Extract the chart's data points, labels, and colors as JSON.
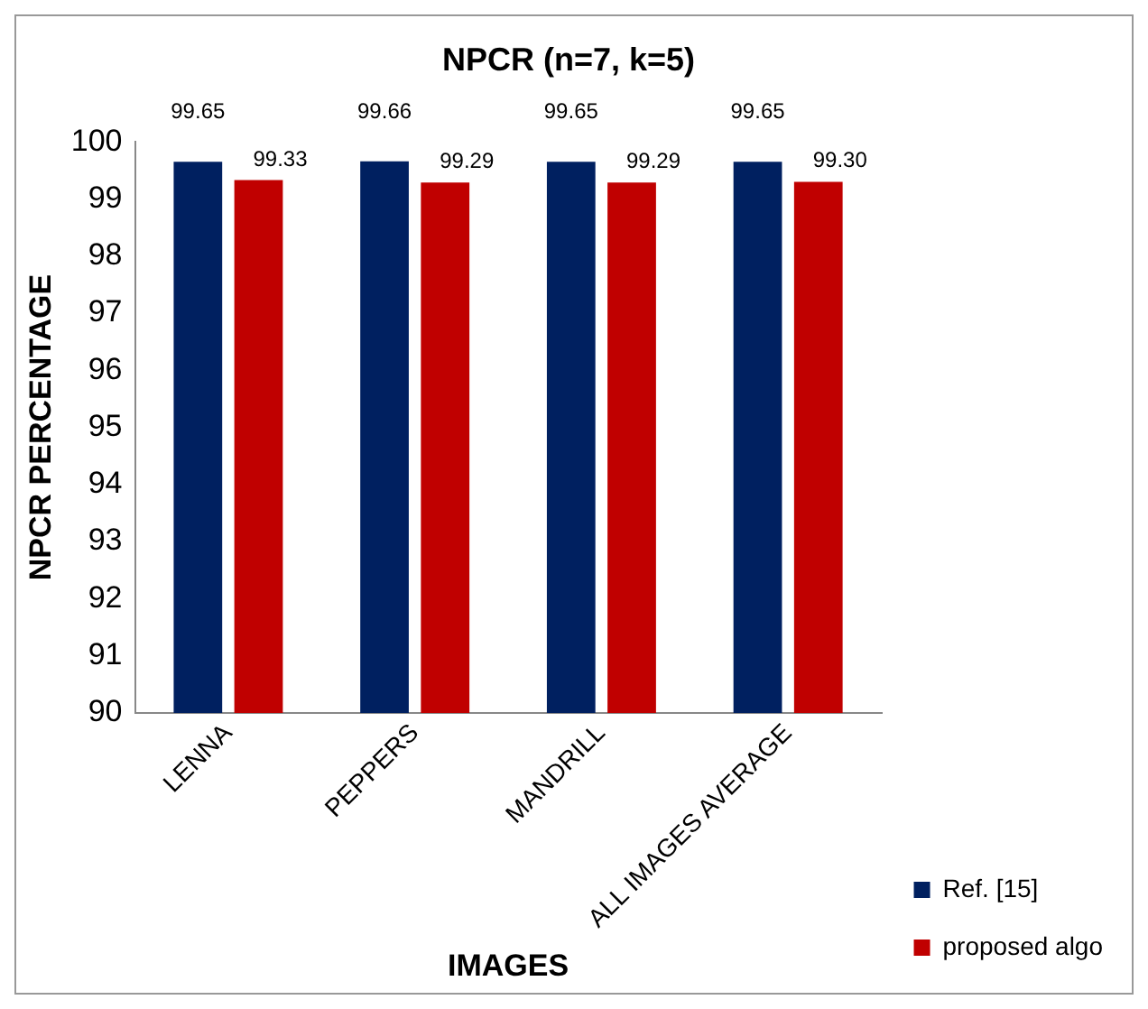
{
  "chart_data": {
    "type": "bar",
    "title": "NPCR (n=7, k=5)",
    "xlabel": "IMAGES",
    "ylabel": "NPCR PERCENTAGE",
    "categories": [
      "LENNA",
      "PEPPERS",
      "MANDRILL",
      "ALL IMAGES AVERAGE"
    ],
    "series": [
      {
        "name": "Ref. [15]",
        "color": "#002060",
        "values": [
          99.65,
          99.66,
          99.65,
          99.65
        ],
        "value_labels": [
          "99.65",
          "99.66",
          "99.65",
          "99.65"
        ]
      },
      {
        "name": "proposed algo",
        "color": "#c00000",
        "values": [
          99.33,
          99.29,
          99.29,
          99.3
        ],
        "value_labels": [
          "99.33",
          "99.29",
          "99.29",
          "99.30"
        ]
      }
    ],
    "ylim": [
      90,
      100
    ],
    "yticks": [
      90,
      91,
      92,
      93,
      94,
      95,
      96,
      97,
      98,
      99,
      100
    ],
    "grid": false,
    "legend": "right"
  }
}
